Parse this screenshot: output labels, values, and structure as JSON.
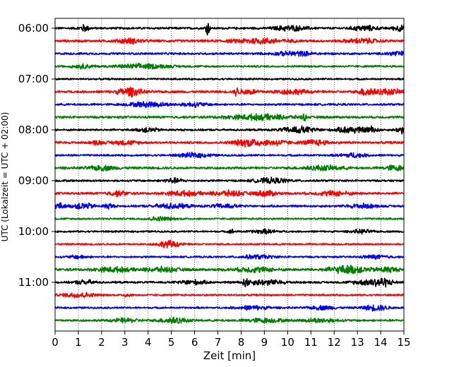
{
  "chart_data": {
    "type": "line",
    "subtype": "helicorder",
    "xlabel": "Zeit  [min]",
    "ylabel": "UTC (Lokalzeit = UTC + 02:00)",
    "xlim": [
      0,
      15
    ],
    "x_ticks": [
      "0",
      "1",
      "2",
      "3",
      "4",
      "5",
      "6",
      "7",
      "8",
      "9",
      "10",
      "11",
      "12",
      "13",
      "14",
      "15"
    ],
    "grid": "vertical dotted lines at each minute",
    "y_tick_labels": [
      "06:00",
      "07:00",
      "08:00",
      "09:00",
      "10:00",
      "11:00"
    ],
    "traces_per_hour": 4,
    "trace_minutes": 15,
    "traces": [
      {
        "start": "06:00",
        "color": "#000000",
        "amp": 0.18,
        "events": [
          {
            "t": 1.25,
            "a": 0.55,
            "w": 0.15
          },
          {
            "t": 6.55,
            "a": 1.35,
            "w": 0.06
          },
          {
            "t": 10.1,
            "a": 0.4,
            "w": 0.5
          },
          {
            "t": 13.3,
            "a": 0.4,
            "w": 0.4
          },
          {
            "t": 14.8,
            "a": 0.45,
            "w": 0.2
          }
        ]
      },
      {
        "start": "06:15",
        "color": "#ff0000",
        "amp": 0.2,
        "events": [
          {
            "t": 3.2,
            "a": 0.35,
            "w": 0.4
          },
          {
            "t": 8.8,
            "a": 0.4,
            "w": 0.8
          },
          {
            "t": 13.2,
            "a": 0.35,
            "w": 0.5
          }
        ]
      },
      {
        "start": "06:30",
        "color": "#0000ff",
        "amp": 0.18,
        "events": [
          {
            "t": 10.3,
            "a": 0.35,
            "w": 0.6
          },
          {
            "t": 14.7,
            "a": 0.35,
            "w": 0.3
          }
        ]
      },
      {
        "start": "06:45",
        "color": "#008000",
        "amp": 0.17,
        "events": [
          {
            "t": 1.2,
            "a": 0.3,
            "w": 0.3
          },
          {
            "t": 3.8,
            "a": 0.35,
            "w": 0.8
          }
        ]
      },
      {
        "start": "07:00",
        "color": "#000000",
        "amp": 0.15,
        "events": []
      },
      {
        "start": "07:15",
        "color": "#ff0000",
        "amp": 0.2,
        "events": [
          {
            "t": 3.2,
            "a": 0.7,
            "w": 0.35
          },
          {
            "t": 7.8,
            "a": 0.6,
            "w": 0.06
          },
          {
            "t": 8.3,
            "a": 0.4,
            "w": 0.3
          },
          {
            "t": 10.2,
            "a": 0.35,
            "w": 0.5
          },
          {
            "t": 13.4,
            "a": 0.6,
            "w": 0.2
          },
          {
            "t": 14.2,
            "a": 0.4,
            "w": 0.6
          }
        ]
      },
      {
        "start": "07:30",
        "color": "#0000ff",
        "amp": 0.17,
        "events": [
          {
            "t": 4.0,
            "a": 0.4,
            "w": 0.6
          },
          {
            "t": 6.0,
            "a": 0.3,
            "w": 0.4
          }
        ]
      },
      {
        "start": "07:45",
        "color": "#008000",
        "amp": 0.2,
        "events": [
          {
            "t": 8.8,
            "a": 0.4,
            "w": 1.0
          },
          {
            "t": 10.7,
            "a": 0.55,
            "w": 0.06
          }
        ]
      },
      {
        "start": "08:00",
        "color": "#000000",
        "amp": 0.17,
        "events": [
          {
            "t": 4.0,
            "a": 0.35,
            "w": 0.3
          },
          {
            "t": 10.5,
            "a": 0.55,
            "w": 0.5
          },
          {
            "t": 12.7,
            "a": 0.55,
            "w": 0.4
          },
          {
            "t": 13.6,
            "a": 0.5,
            "w": 0.2
          },
          {
            "t": 14.9,
            "a": 0.6,
            "w": 0.15
          }
        ]
      },
      {
        "start": "08:15",
        "color": "#ff0000",
        "amp": 0.2,
        "events": [
          {
            "t": 1.8,
            "a": 0.35,
            "w": 0.15
          },
          {
            "t": 3.0,
            "a": 0.3,
            "w": 0.4
          },
          {
            "t": 8.4,
            "a": 0.6,
            "w": 0.5
          },
          {
            "t": 9.6,
            "a": 0.35,
            "w": 0.3
          },
          {
            "t": 11.2,
            "a": 0.4,
            "w": 0.4
          }
        ]
      },
      {
        "start": "08:30",
        "color": "#0000ff",
        "amp": 0.16,
        "events": [
          {
            "t": 6.0,
            "a": 0.35,
            "w": 0.5
          },
          {
            "t": 12.8,
            "a": 0.35,
            "w": 0.4
          }
        ]
      },
      {
        "start": "08:45",
        "color": "#008000",
        "amp": 0.2,
        "events": [
          {
            "t": 2.0,
            "a": 0.35,
            "w": 0.4
          },
          {
            "t": 11.5,
            "a": 0.35,
            "w": 0.6
          },
          {
            "t": 14.6,
            "a": 0.4,
            "w": 0.3
          }
        ]
      },
      {
        "start": "09:00",
        "color": "#000000",
        "amp": 0.17,
        "events": [
          {
            "t": 5.1,
            "a": 0.35,
            "w": 0.3
          },
          {
            "t": 9.3,
            "a": 0.4,
            "w": 0.5
          }
        ]
      },
      {
        "start": "09:15",
        "color": "#ff0000",
        "amp": 0.2,
        "events": [
          {
            "t": 2.7,
            "a": 0.35,
            "w": 0.3
          },
          {
            "t": 5.5,
            "a": 0.35,
            "w": 0.5
          },
          {
            "t": 7.5,
            "a": 0.4,
            "w": 0.5
          },
          {
            "t": 9.1,
            "a": 0.45,
            "w": 0.3
          },
          {
            "t": 12.0,
            "a": 0.35,
            "w": 0.5
          }
        ]
      },
      {
        "start": "09:30",
        "color": "#0000ff",
        "amp": 0.18,
        "events": [
          {
            "t": 0.2,
            "a": 0.45,
            "w": 0.15
          },
          {
            "t": 1.2,
            "a": 0.5,
            "w": 0.3
          },
          {
            "t": 2.3,
            "a": 0.4,
            "w": 0.15
          },
          {
            "t": 5.0,
            "a": 0.4,
            "w": 0.5
          },
          {
            "t": 7.3,
            "a": 0.3,
            "w": 0.4
          },
          {
            "t": 13.2,
            "a": 0.35,
            "w": 0.4
          }
        ]
      },
      {
        "start": "09:45",
        "color": "#008000",
        "amp": 0.16,
        "events": [
          {
            "t": 4.5,
            "a": 0.3,
            "w": 0.4
          }
        ]
      },
      {
        "start": "10:00",
        "color": "#000000",
        "amp": 0.15,
        "events": [
          {
            "t": 7.6,
            "a": 0.35,
            "w": 0.1
          },
          {
            "t": 9.0,
            "a": 0.3,
            "w": 0.4
          },
          {
            "t": 13.2,
            "a": 0.3,
            "w": 0.3
          }
        ]
      },
      {
        "start": "10:15",
        "color": "#ff0000",
        "amp": 0.15,
        "events": [
          {
            "t": 4.9,
            "a": 0.55,
            "w": 0.35
          }
        ]
      },
      {
        "start": "10:30",
        "color": "#0000ff",
        "amp": 0.15,
        "events": [
          {
            "t": 1.0,
            "a": 0.25,
            "w": 0.3
          },
          {
            "t": 8.7,
            "a": 0.3,
            "w": 0.5
          },
          {
            "t": 13.8,
            "a": 0.3,
            "w": 0.4
          }
        ]
      },
      {
        "start": "10:45",
        "color": "#008000",
        "amp": 0.22,
        "events": [
          {
            "t": 2.5,
            "a": 0.35,
            "w": 0.5
          },
          {
            "t": 4.6,
            "a": 0.35,
            "w": 0.5
          },
          {
            "t": 8.6,
            "a": 0.35,
            "w": 0.6
          },
          {
            "t": 12.6,
            "a": 0.6,
            "w": 0.6
          },
          {
            "t": 14.3,
            "a": 0.4,
            "w": 0.3
          }
        ]
      },
      {
        "start": "11:00",
        "color": "#000000",
        "amp": 0.17,
        "events": [
          {
            "t": 1.3,
            "a": 0.35,
            "w": 0.3
          },
          {
            "t": 5.9,
            "a": 0.35,
            "w": 0.4
          },
          {
            "t": 8.2,
            "a": 0.6,
            "w": 0.1
          },
          {
            "t": 9.0,
            "a": 0.4,
            "w": 0.6
          },
          {
            "t": 13.5,
            "a": 0.4,
            "w": 0.5
          },
          {
            "t": 14.1,
            "a": 0.55,
            "w": 0.3
          }
        ]
      },
      {
        "start": "11:15",
        "color": "#ff0000",
        "amp": 0.15,
        "events": [
          {
            "t": 1.0,
            "a": 0.4,
            "w": 0.5
          },
          {
            "t": 3.1,
            "a": 0.35,
            "w": 0.1
          }
        ]
      },
      {
        "start": "11:30",
        "color": "#0000ff",
        "amp": 0.15,
        "events": [
          {
            "t": 8.5,
            "a": 0.3,
            "w": 0.5
          },
          {
            "t": 11.5,
            "a": 0.3,
            "w": 0.4
          },
          {
            "t": 13.8,
            "a": 0.45,
            "w": 0.4
          }
        ]
      },
      {
        "start": "11:45",
        "color": "#008000",
        "amp": 0.18,
        "events": [
          {
            "t": 3.0,
            "a": 0.3,
            "w": 0.4
          },
          {
            "t": 5.1,
            "a": 0.5,
            "w": 0.4
          },
          {
            "t": 9.0,
            "a": 0.3,
            "w": 0.6
          },
          {
            "t": 11.4,
            "a": 0.3,
            "w": 0.5
          }
        ]
      }
    ]
  }
}
